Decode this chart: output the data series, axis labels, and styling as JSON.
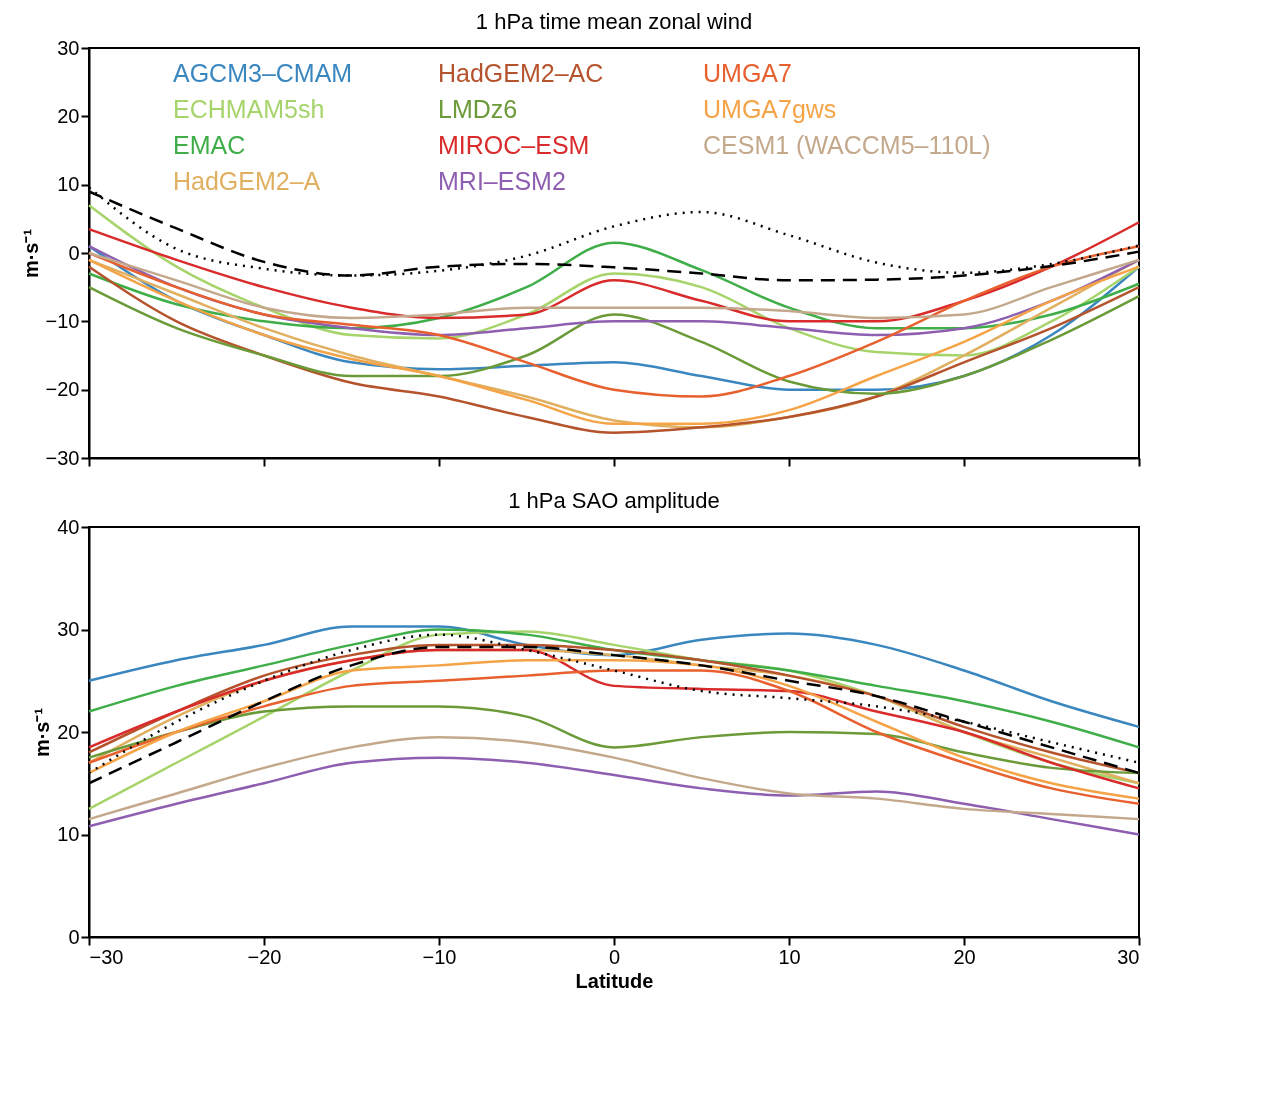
{
  "chart_data": [
    {
      "type": "line",
      "title": "1 hPa time mean zonal wind",
      "ylabel": "m·s⁻¹",
      "legend": "top left",
      "grid": false,
      "tick_labels": "y",
      "x": [
        -30,
        -25,
        -20,
        -15,
        -10,
        -5,
        0,
        5,
        10,
        15,
        20,
        25,
        30
      ],
      "xlim": [
        -30,
        30
      ],
      "xticks": [
        -30,
        -20,
        -10,
        0,
        10,
        20,
        30
      ],
      "ylim": [
        -30,
        30
      ],
      "yticks": [
        -30,
        -20,
        -10,
        0,
        10,
        20,
        30
      ],
      "series": [
        {
          "name": "AGCM3–CMAM",
          "color": "#3a87c0",
          "values": [
            1,
            -7,
            -12,
            -16,
            -17,
            -16.5,
            -16,
            -18,
            -20,
            -20,
            -18,
            -12,
            -2
          ]
        },
        {
          "name": "ECHMAM5sh",
          "color": "#a6d46a",
          "values": [
            7,
            -2,
            -8,
            -12,
            -12.5,
            -9,
            -3,
            -5,
            -11,
            -14.5,
            -15,
            -10,
            -2
          ]
        },
        {
          "name": "EMAC",
          "color": "#3fae49",
          "values": [
            -3,
            -7.5,
            -10,
            -11,
            -9.5,
            -5,
            1.5,
            -2.5,
            -8,
            -11,
            -11,
            -9,
            -4.5
          ]
        },
        {
          "name": "HadGEM2–A",
          "color": "#e0b060",
          "values": [
            -1,
            -6,
            -11,
            -15,
            -18,
            -21,
            -24.5,
            -25.5,
            -24,
            -21,
            -15,
            -8,
            -1
          ]
        },
        {
          "name": "HadGEM2–AC",
          "color": "#b5532c",
          "values": [
            -2,
            -10,
            -15,
            -19,
            -21,
            -24,
            -26.3,
            -25.5,
            -24,
            -21,
            -16,
            -11,
            -5
          ]
        },
        {
          "name": "LMDz6",
          "color": "#6b9a38",
          "values": [
            -5,
            -11,
            -15,
            -18,
            -18,
            -15,
            -9,
            -13,
            -18.8,
            -20.6,
            -18,
            -12.7,
            -6.3
          ]
        },
        {
          "name": "MIROC–ESM",
          "color": "#d92b2b",
          "values": [
            3.5,
            -1,
            -5,
            -8,
            -9.5,
            -9,
            -4,
            -7,
            -10,
            -10,
            -7,
            -2,
            4.5
          ]
        },
        {
          "name": "MRI–ESM2",
          "color": "#8e5fb0",
          "values": [
            1,
            -5,
            -9,
            -11,
            -12,
            -11,
            -10,
            -10,
            -11,
            -12,
            -11,
            -7,
            -1
          ]
        },
        {
          "name": "UMGA7",
          "color": "#e8602e",
          "values": [
            0,
            -5,
            -9,
            -10.5,
            -12,
            -16,
            -20,
            -21,
            -18,
            -13,
            -7,
            -2,
            1
          ]
        },
        {
          "name": "UMGA7gws",
          "color": "#f5a347",
          "values": [
            -1,
            -7,
            -12,
            -15.5,
            -18,
            -21.5,
            -25,
            -25,
            -23,
            -18,
            -13,
            -7,
            -2
          ]
        },
        {
          "name": "CESM1 (WACCM5–110L)",
          "color": "#c4a88c",
          "values": [
            0,
            -4,
            -8,
            -9.5,
            -9,
            -8,
            -8,
            -8,
            -8.5,
            -9.5,
            -9,
            -5,
            -1
          ]
        },
        {
          "color": "#000000",
          "line_style": "dotted",
          "values": [
            9.6,
            0.6,
            -2.3,
            -3.3,
            -2.6,
            -0.4,
            3.9,
            6,
            2.6,
            -1.4,
            -2.9,
            -1.6,
            1.1
          ]
        },
        {
          "color": "#000000",
          "line_style": "dashed",
          "values": [
            9,
            3.6,
            -1.3,
            -3.3,
            -2,
            -1.6,
            -2.1,
            -3,
            -4,
            -3.9,
            -3.3,
            -1.9,
            0.2
          ]
        }
      ]
    },
    {
      "type": "line",
      "title": "1 hPa SAO amplitude",
      "xlabel": "Latitude",
      "ylabel": "m·s⁻¹",
      "grid": false,
      "x": [
        -30,
        -25,
        -20,
        -15,
        -10,
        -5,
        0,
        5,
        10,
        15,
        20,
        25,
        30
      ],
      "xlim": [
        -30,
        30
      ],
      "xticks": [
        -30,
        -20,
        -10,
        0,
        10,
        20,
        30
      ],
      "ylim": [
        0,
        40
      ],
      "yticks": [
        0,
        10,
        20,
        30,
        40
      ],
      "series": [
        {
          "color": "#3a87c0",
          "values": [
            25,
            27,
            28.5,
            30.3,
            30.3,
            28.5,
            27.5,
            29,
            29.6,
            28.5,
            26,
            23,
            20.5
          ]
        },
        {
          "color": "#a6d46a",
          "values": [
            12.5,
            17,
            21.5,
            26,
            29.5,
            29.8,
            28.5,
            27,
            26,
            23.5,
            20,
            17,
            15
          ]
        },
        {
          "color": "#3fae49",
          "values": [
            22,
            24.5,
            26.5,
            28.5,
            30,
            29.5,
            28,
            27,
            26,
            24.5,
            23,
            21,
            18.5
          ]
        },
        {
          "color": "#e0b060",
          "values": [
            17,
            21.5,
            25,
            27,
            28,
            28,
            27.5,
            26.5,
            25.5,
            23.5,
            20,
            17.5,
            15
          ]
        },
        {
          "color": "#b5532c",
          "values": [
            18,
            22,
            25.5,
            27.5,
            28.5,
            28.5,
            28,
            27,
            25.5,
            23.5,
            20.5,
            18,
            16
          ]
        },
        {
          "color": "#6b9a38",
          "values": [
            17.5,
            20,
            22,
            22.5,
            22.5,
            21.5,
            18.5,
            19.5,
            20,
            19.8,
            18,
            16.5,
            16
          ]
        },
        {
          "color": "#d92b2b",
          "values": [
            18.5,
            22,
            25,
            27,
            28,
            28,
            24.5,
            24.2,
            24,
            22,
            20,
            17,
            14.5
          ]
        },
        {
          "color": "#8e5fb0",
          "values": [
            10.8,
            13,
            15,
            17,
            17.5,
            17,
            15.8,
            14.5,
            13.8,
            14.2,
            13,
            11.5,
            10
          ]
        },
        {
          "color": "#e8602e",
          "values": [
            17,
            20,
            22.5,
            24.5,
            25,
            25.5,
            26,
            26,
            24,
            20,
            17,
            14.5,
            13
          ]
        },
        {
          "color": "#f5a347",
          "values": [
            16,
            20,
            23,
            26,
            26.5,
            27,
            27,
            26.5,
            24.5,
            21,
            17.5,
            15,
            13.5
          ]
        },
        {
          "color": "#c4a88c",
          "values": [
            11.5,
            14,
            16.5,
            18.5,
            19.5,
            19,
            17.5,
            15.5,
            14,
            13.5,
            12.5,
            12,
            11.5
          ]
        },
        {
          "color": "#000000",
          "line_style": "dotted",
          "values": [
            16,
            21,
            25,
            28,
            29.5,
            28,
            26,
            24,
            23.3,
            22.5,
            21,
            19,
            17
          ]
        },
        {
          "color": "#000000",
          "line_style": "dashed",
          "values": [
            15,
            19,
            23,
            26.5,
            28.3,
            28.3,
            27.5,
            26.5,
            25,
            23.5,
            21,
            18.5,
            16
          ]
        }
      ]
    }
  ]
}
